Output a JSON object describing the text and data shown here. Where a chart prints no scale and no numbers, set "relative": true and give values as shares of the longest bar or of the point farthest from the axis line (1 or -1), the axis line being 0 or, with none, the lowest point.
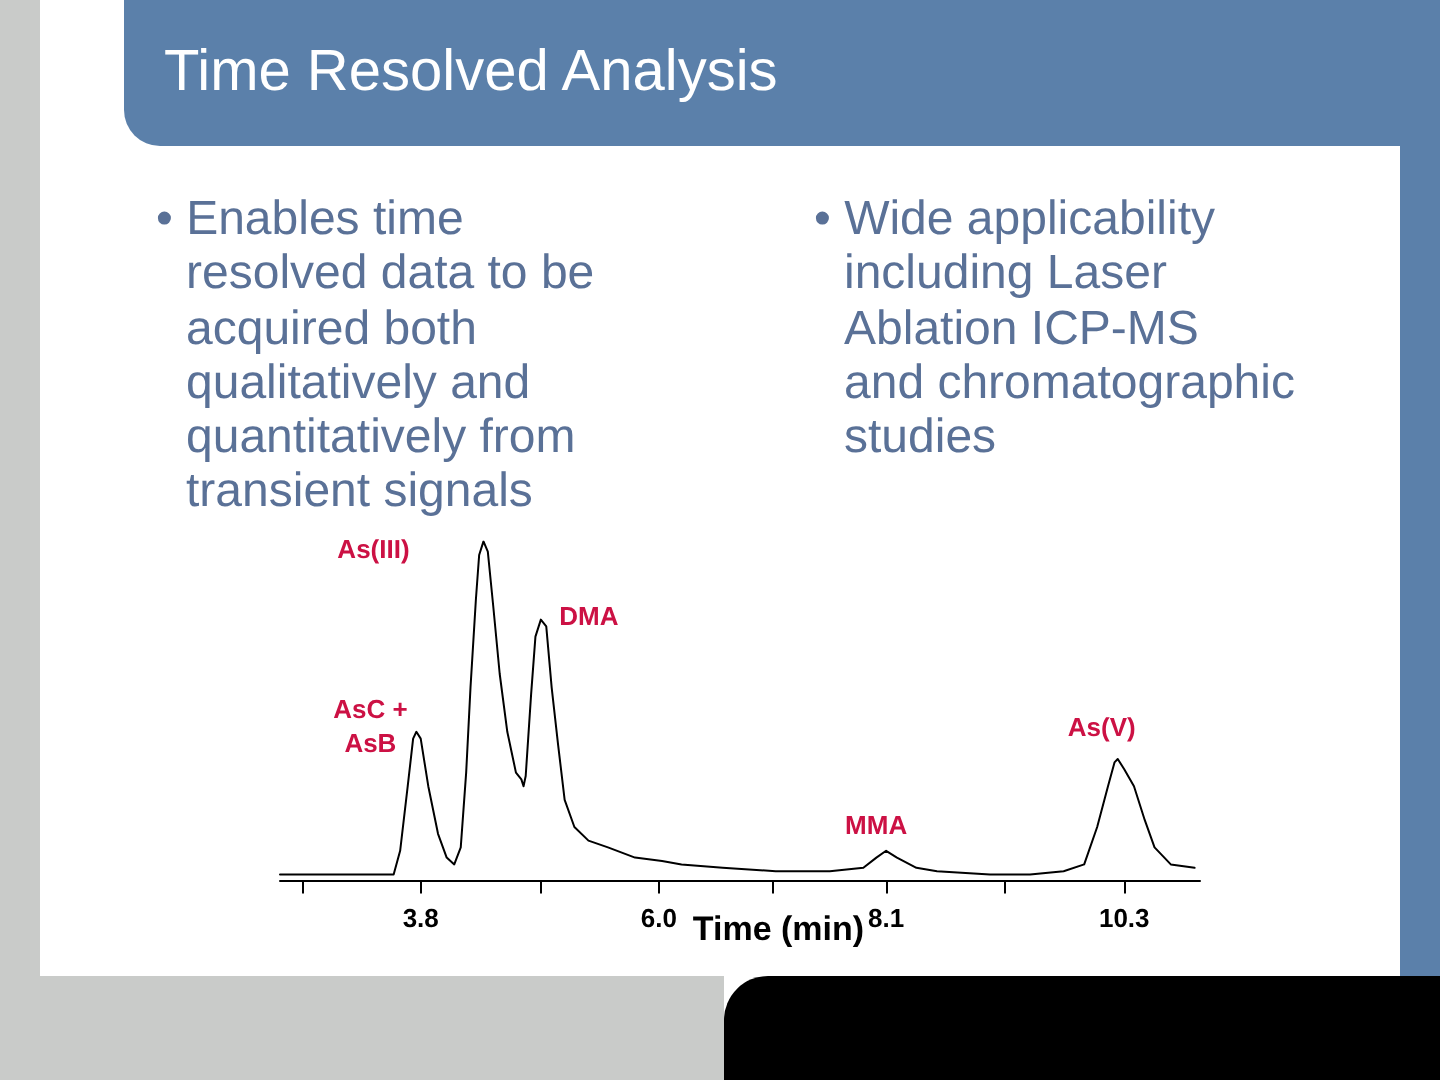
{
  "chart_data": {
    "type": "line",
    "title": "Time Resolved Analysis",
    "annotations": [
      "• Enables time\nresolved data to be\nacquired both\nqualitatively and\nquantitatively from\ntransient signals",
      "• Wide applicability\nincluding Laser\nAblation ICP-MS\nand chromatographic\nstudies",
      {
        "text": "AsC +\nAsB",
        "x": 3.76,
        "y": 0.44
      },
      {
        "text": "As(III)",
        "x": 4.38,
        "y": 1.0
      },
      {
        "text": "DMA",
        "x": 4.91,
        "y": 0.77
      },
      {
        "text": "MMA",
        "x": 8.1,
        "y": 0.09
      },
      {
        "text": "As(V)",
        "x": 10.24,
        "y": 0.36
      }
    ],
    "xlabel": "Time (min)",
    "relative": true,
    "color": "#000000",
    "x": [
      2.5,
      3.55,
      3.61,
      3.68,
      3.73,
      3.76,
      3.8,
      3.87,
      3.96,
      4.04,
      4.11,
      4.17,
      4.22,
      4.26,
      4.31,
      4.34,
      4.38,
      4.42,
      4.47,
      4.53,
      4.6,
      4.68,
      4.73,
      4.75,
      4.77,
      4.82,
      4.86,
      4.91,
      4.96,
      5.01,
      5.07,
      5.13,
      5.22,
      5.35,
      5.53,
      5.78,
      6.03,
      6.21,
      6.59,
      7.08,
      7.58,
      7.89,
      8.01,
      8.1,
      8.2,
      8.38,
      8.57,
      9.06,
      9.43,
      9.74,
      9.93,
      10.05,
      10.15,
      10.21,
      10.24,
      10.3,
      10.39,
      10.49,
      10.58,
      10.73,
      10.95
    ],
    "values": [
      0.02,
      0.02,
      0.09,
      0.28,
      0.42,
      0.44,
      0.42,
      0.28,
      0.14,
      0.07,
      0.05,
      0.1,
      0.32,
      0.57,
      0.83,
      0.96,
      1.0,
      0.97,
      0.81,
      0.61,
      0.44,
      0.32,
      0.3,
      0.28,
      0.31,
      0.55,
      0.72,
      0.77,
      0.75,
      0.57,
      0.4,
      0.24,
      0.16,
      0.12,
      0.1,
      0.07,
      0.06,
      0.05,
      0.04,
      0.03,
      0.03,
      0.04,
      0.07,
      0.09,
      0.07,
      0.04,
      0.03,
      0.02,
      0.02,
      0.03,
      0.05,
      0.16,
      0.28,
      0.35,
      0.36,
      0.33,
      0.28,
      0.18,
      0.1,
      0.05,
      0.04
    ],
    "xlim": [
      2.5,
      11.0
    ],
    "xticks": [
      {
        "value": 2.7,
        "label": null
      },
      3.8,
      {
        "value": 4.9,
        "label": null
      },
      {
        "value": 6,
        "label": "6.0"
      },
      {
        "value": 7.05,
        "label": null
      },
      8.1,
      {
        "value": 9.2,
        "label": null
      },
      10.3
    ]
  }
}
